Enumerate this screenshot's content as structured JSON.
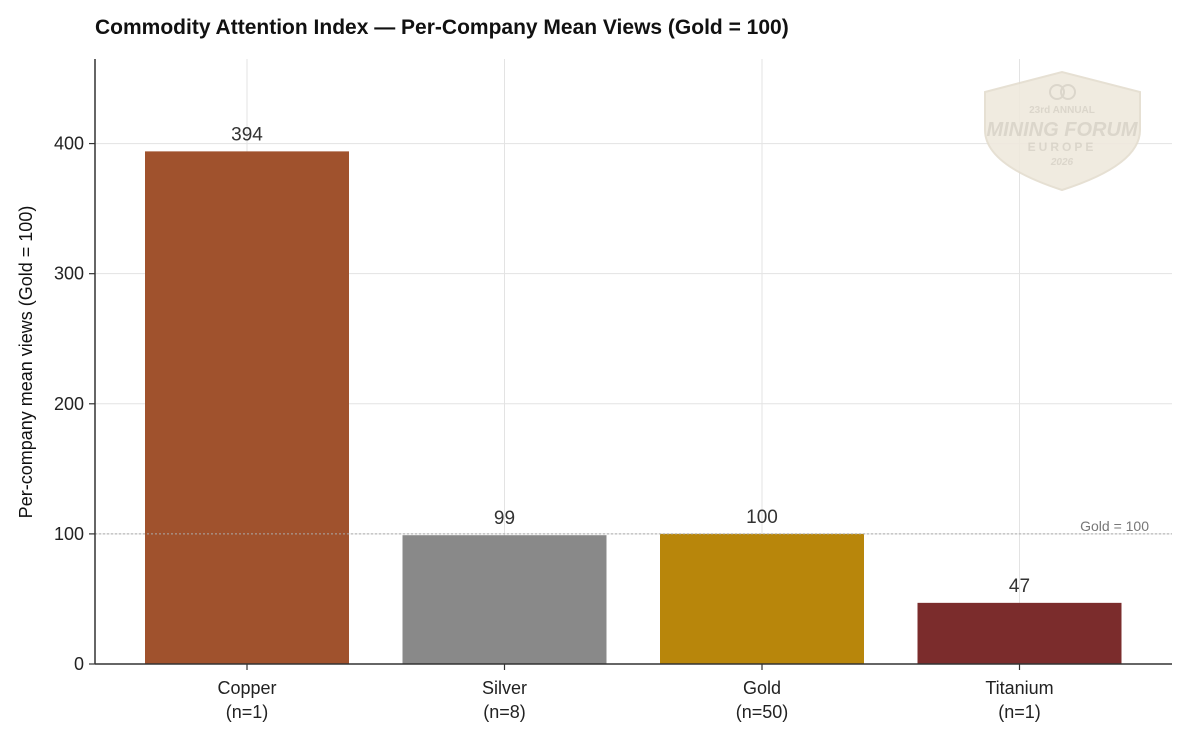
{
  "chart_data": {
    "type": "bar",
    "title": "Commodity Attention Index — Per-Company Mean Views (Gold = 100)",
    "ylabel": "Per-company mean views (Gold = 100)",
    "xlabel": "",
    "categories": [
      "Copper",
      "Silver",
      "Gold",
      "Titanium"
    ],
    "category_counts": [
      "(n=1)",
      "(n=8)",
      "(n=50)",
      "(n=1)"
    ],
    "values": [
      394,
      99,
      100,
      47
    ],
    "value_labels": [
      "394",
      "99",
      "100",
      "47"
    ],
    "colors": [
      "#A0522D",
      "#898989",
      "#B8860B",
      "#7B2C2C"
    ],
    "ylim": [
      0,
      465
    ],
    "yticks": [
      0,
      100,
      200,
      300,
      400
    ],
    "grid": true,
    "reference_line": {
      "value": 100,
      "label": "Gold = 100",
      "style": "dotted"
    }
  },
  "watermark": {
    "line1": "23rd ANNUAL",
    "line2": "MINING FORUM",
    "line3": "EUROPE",
    "line4": "2026"
  }
}
